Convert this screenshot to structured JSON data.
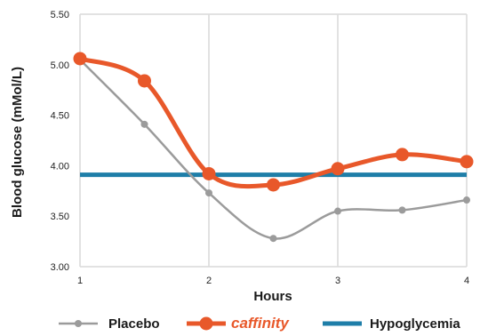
{
  "chart_data": {
    "type": "line",
    "xlabel": "Hours",
    "ylabel": "Blood glucose (mMol/L)",
    "xlim": [
      1,
      4
    ],
    "ylim": [
      3.0,
      5.5
    ],
    "x_ticks": [
      "1",
      "2",
      "3",
      "4"
    ],
    "y_ticks": [
      "3.00",
      "3.50",
      "4.00",
      "4.50",
      "5.00",
      "5.50"
    ],
    "grid": "vertical",
    "legend_position": "bottom",
    "series": [
      {
        "name": "Placebo",
        "color": "#9b9b9b",
        "x": [
          1,
          1.5,
          2,
          2.5,
          3,
          3.5,
          4
        ],
        "values": [
          5.05,
          4.41,
          3.73,
          3.28,
          3.55,
          3.56,
          3.66
        ]
      },
      {
        "name": "caffinity",
        "color": "#e8582a",
        "x": [
          1,
          1.5,
          2,
          2.5,
          3,
          3.5,
          4
        ],
        "values": [
          5.06,
          4.84,
          3.92,
          3.81,
          3.97,
          4.11,
          4.04
        ]
      },
      {
        "name": "Hypoglycemia",
        "color": "#1e7ea8",
        "x": [
          1,
          4
        ],
        "values": [
          3.91,
          3.91
        ]
      }
    ]
  }
}
